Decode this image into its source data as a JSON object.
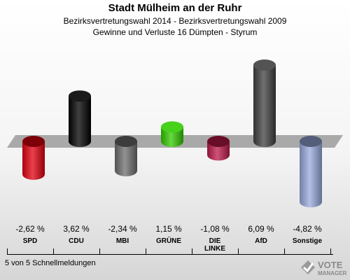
{
  "header": {
    "title": "Stadt Mülheim an der Ruhr",
    "subtitle1": "Bezirksvertretungswahl 2014 - Bezirksvertretungswahl 2009",
    "subtitle2": "Gewinne und Verluste 16 Dümpten - Styrum"
  },
  "chart_data": {
    "type": "bar",
    "title": "Stadt Mülheim an der Ruhr",
    "categories": [
      "SPD",
      "CDU",
      "MBI",
      "GRÜNE",
      "DIE LINKE",
      "AfD",
      "Sonstige"
    ],
    "values": [
      -2.62,
      3.62,
      -2.34,
      1.15,
      -1.08,
      6.09,
      -4.82
    ],
    "value_labels": [
      "-2,62 %",
      "3,62 %",
      "-2,34 %",
      "1,15 %",
      "-1,08 %",
      "6,09 %",
      "-4,82 %"
    ],
    "colors": [
      "#e3000f",
      "#000000",
      "#6e6e6e",
      "#33cc00",
      "#be1a4b",
      "#404040",
      "#99aadd"
    ],
    "ylim": [
      -4.82,
      6.09
    ],
    "grid": false
  },
  "labels": {
    "spd": "SPD",
    "cdu": "CDU",
    "mbi": "MBI",
    "gruene": "GRÜNE",
    "linke_1": "DIE",
    "linke_2": "LINKE",
    "afd": "AfD",
    "sonstige": "Sonstige"
  },
  "footer": {
    "note": "5 von 5 Schnellmeldungen"
  },
  "logo": {
    "word": "VOTE",
    "tagline": "MANAGER"
  }
}
